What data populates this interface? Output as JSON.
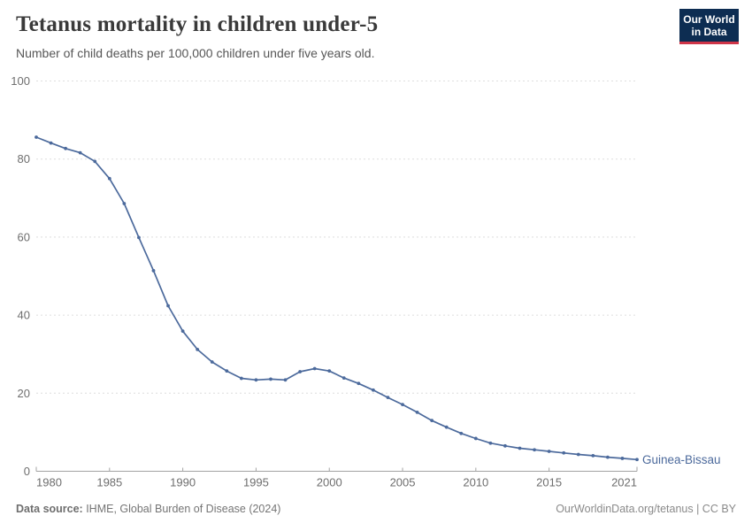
{
  "header": {
    "title": "Tetanus mortality in children under-5",
    "subtitle": "Number of child deaths per 100,000 children under five years old.",
    "logo_line1": "Our World",
    "logo_line2": "in Data"
  },
  "chart_data": {
    "type": "line",
    "title": "Tetanus mortality in children under-5",
    "subtitle": "Number of child deaths per 100,000 children under five years old.",
    "xlabel": "",
    "ylabel": "",
    "xlim": [
      1980,
      2021
    ],
    "ylim": [
      0,
      100
    ],
    "xticks": [
      1980,
      1985,
      1990,
      1995,
      2000,
      2005,
      2010,
      2015,
      2021
    ],
    "yticks": [
      0,
      20,
      40,
      60,
      80,
      100
    ],
    "grid": "horizontal-dashed",
    "legend_position": "end-of-line-label",
    "series": [
      {
        "name": "Guinea-Bissau",
        "color": "#4c6a9c",
        "x": [
          1980,
          1981,
          1982,
          1983,
          1984,
          1985,
          1986,
          1987,
          1988,
          1989,
          1990,
          1991,
          1992,
          1993,
          1994,
          1995,
          1996,
          1997,
          1998,
          1999,
          2000,
          2001,
          2002,
          2003,
          2004,
          2005,
          2006,
          2007,
          2008,
          2009,
          2010,
          2011,
          2012,
          2013,
          2014,
          2015,
          2016,
          2017,
          2018,
          2019,
          2020,
          2021
        ],
        "values": [
          85.6,
          84.1,
          82.7,
          81.6,
          79.4,
          75.0,
          68.6,
          59.9,
          51.4,
          42.4,
          35.9,
          31.2,
          28.0,
          25.7,
          23.8,
          23.4,
          23.6,
          23.4,
          25.5,
          26.3,
          25.7,
          23.9,
          22.5,
          20.8,
          18.9,
          17.1,
          15.1,
          13.0,
          11.3,
          9.7,
          8.4,
          7.2,
          6.5,
          5.9,
          5.5,
          5.1,
          4.7,
          4.3,
          4.0,
          3.6,
          3.3,
          3.0
        ]
      }
    ]
  },
  "footer": {
    "source_label": "Data source:",
    "source_text": " IHME, Global Burden of Disease (2024)",
    "rights": "OurWorldinData.org/tetanus | CC BY"
  },
  "colors": {
    "line": "#4c6a9c",
    "grid": "#dedede",
    "axis": "#a3a3a3",
    "tick_label": "#6e6e6e",
    "title": "#3a3a3a",
    "subtitle": "#565656",
    "logo_bg": "#0d2d52",
    "logo_red": "#cf3548"
  }
}
